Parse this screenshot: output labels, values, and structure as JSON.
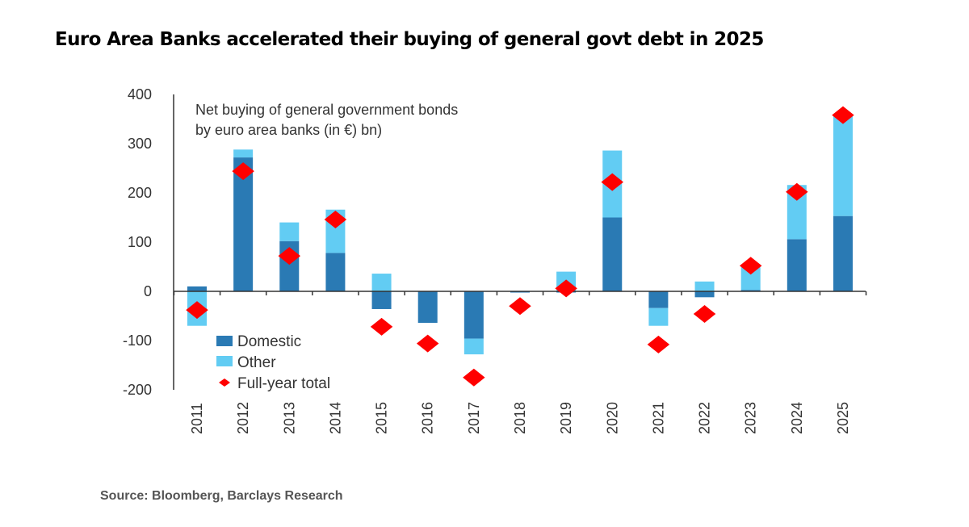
{
  "title": "Euro Area Banks accelerated their buying of general govt debt in 2025",
  "source": "Source: Bloomberg, Barclays Research",
  "chart_data": {
    "type": "bar",
    "stacked": true,
    "annotation": [
      "Net buying of general government  bonds",
      "by euro area banks (in €) bn)"
    ],
    "categories": [
      "2011",
      "2012",
      "2013",
      "2014",
      "2015",
      "2016",
      "2017",
      "2018",
      "2019",
      "2020",
      "2021",
      "2022",
      "2023",
      "2024",
      "2025"
    ],
    "series": [
      {
        "name": "Domestic",
        "kind": "bar",
        "color": "#2a7ab4",
        "values": [
          10,
          272,
          102,
          78,
          -36,
          -64,
          -96,
          -2,
          -2,
          150,
          -34,
          -12,
          3,
          106,
          153
        ]
      },
      {
        "name": "Other",
        "kind": "bar",
        "color": "#62ccf3",
        "values": [
          -70,
          16,
          38,
          88,
          36,
          0,
          -32,
          0,
          40,
          136,
          -36,
          20,
          46,
          110,
          204
        ]
      },
      {
        "name": "Full-year total",
        "kind": "marker",
        "marker": "diamond",
        "color": "#ff0000",
        "values": [
          -38,
          244,
          72,
          146,
          -72,
          -106,
          -175,
          -30,
          6,
          222,
          -108,
          -46,
          52,
          202,
          358
        ]
      }
    ],
    "yticks": [
      400,
      300,
      200,
      100,
      0,
      -100,
      -200
    ],
    "ylim": [
      -200,
      400
    ],
    "grid": false,
    "legend": "bottom-left",
    "xlabel": "",
    "ylabel": ""
  }
}
